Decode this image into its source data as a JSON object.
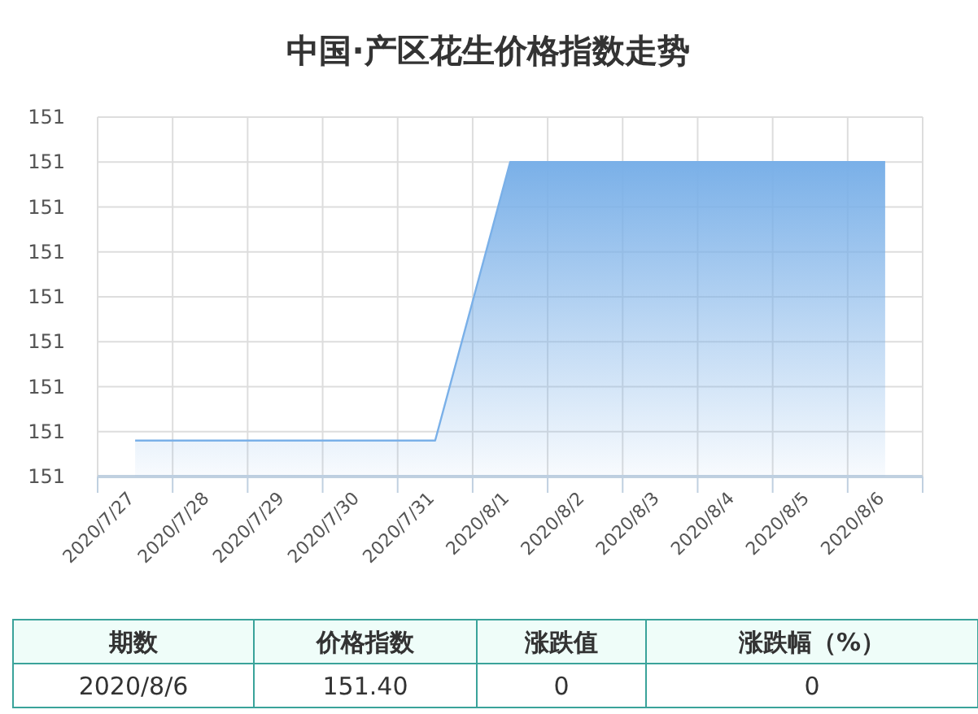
{
  "chart_data": [
    {
      "type": "area",
      "title": "中国·产区花生价格指数走势",
      "categories": [
        "2020/7/27",
        "2020/7/28",
        "2020/7/29",
        "2020/7/30",
        "2020/7/31",
        "2020/8/1",
        "2020/8/2",
        "2020/8/3",
        "2020/8/4",
        "2020/8/5",
        "2020/8/6"
      ],
      "series": [
        {
          "color": "#7ab0e8",
          "values": [
            151.338,
            151.338,
            151.338,
            151.338,
            151.338,
            151.4,
            151.4,
            151.4,
            151.4,
            151.4,
            151.4
          ]
        }
      ],
      "ylim": [
        151.33,
        151.41
      ],
      "yticks": [
        {
          "value": 151.33,
          "label": "151"
        },
        {
          "value": 151.34,
          "label": "151"
        },
        {
          "value": 151.35,
          "label": "151"
        },
        {
          "value": 151.36,
          "label": "151"
        },
        {
          "value": 151.37,
          "label": "151"
        },
        {
          "value": 151.38,
          "label": "151"
        },
        {
          "value": 151.39,
          "label": "151"
        },
        {
          "value": 151.4,
          "label": "151"
        },
        {
          "value": 151.41,
          "label": "151"
        }
      ],
      "grid": true
    },
    {
      "type": "other",
      "annotations": [
        "期数",
        "价格指数",
        "涨跌值",
        "涨跌幅（%）",
        "2020/8/6",
        "151.40",
        "0",
        "0"
      ]
    }
  ]
}
